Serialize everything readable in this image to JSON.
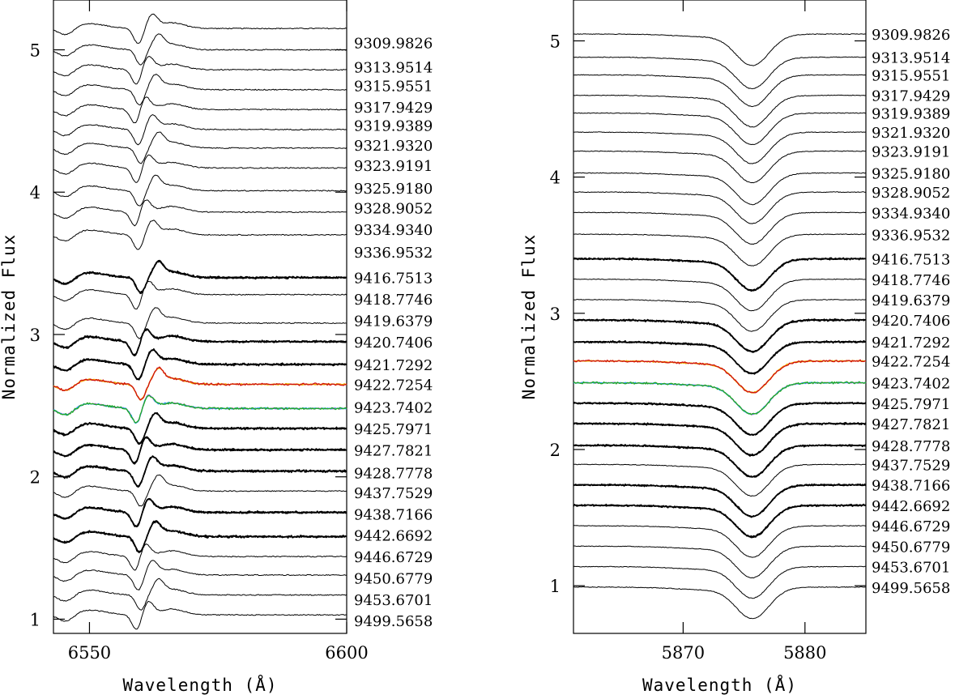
{
  "chart_data": [
    {
      "type": "line",
      "title": "",
      "xlabel": "Wavelength (Å)",
      "ylabel": "Normalized Flux",
      "xlim": [
        6543,
        6600
      ],
      "ylim": [
        0.9,
        5.35
      ],
      "x_ticks": [
        6550,
        6600
      ],
      "y_ticks": [
        1,
        2,
        3,
        4,
        5
      ],
      "line_type": "emission",
      "grid": false,
      "legend": "none"
    },
    {
      "type": "line",
      "title": "",
      "xlabel": "Wavelength (Å)",
      "ylabel": "Normalized Flux",
      "xlim": [
        5861,
        5885
      ],
      "ylim": [
        0.65,
        5.3
      ],
      "x_ticks": [
        5870,
        5880
      ],
      "y_ticks": [
        1,
        2,
        3,
        4,
        5
      ],
      "line_type": "absorption",
      "grid": false,
      "legend": "none"
    }
  ],
  "spectra": [
    {
      "label": "9309.9826",
      "right_offset": 5.05,
      "left_offset": 5.15
    },
    {
      "label": "9313.9514",
      "right_offset": 4.88,
      "left_offset": 5.0
    },
    {
      "label": "9315.9551",
      "right_offset": 4.75,
      "left_offset": 4.86
    },
    {
      "label": "9317.9429",
      "right_offset": 4.6,
      "left_offset": 4.72
    },
    {
      "label": "9319.9389",
      "right_offset": 4.47,
      "left_offset": 4.58
    },
    {
      "label": "9321.9320",
      "right_offset": 4.33,
      "left_offset": 4.44
    },
    {
      "label": "9323.9191",
      "right_offset": 4.19,
      "left_offset": 4.31
    },
    {
      "label": "9325.9180",
      "right_offset": 4.03,
      "left_offset": 4.17
    },
    {
      "label": "9328.9052",
      "right_offset": 3.89,
      "left_offset": 4.01
    },
    {
      "label": "9334.9340",
      "right_offset": 3.74,
      "left_offset": 3.86
    },
    {
      "label": "9336.9532",
      "right_offset": 3.58,
      "left_offset": 3.7
    },
    {
      "label": "9416.7513",
      "right_offset": 3.4,
      "left_offset": 3.4,
      "bold": true
    },
    {
      "label": "9418.7746",
      "right_offset": 3.25,
      "left_offset": 3.28
    },
    {
      "label": "9419.6379",
      "right_offset": 3.1,
      "left_offset": 3.08
    },
    {
      "label": "9420.7406",
      "right_offset": 2.95,
      "left_offset": 2.95,
      "bold": true
    },
    {
      "label": "9421.7292",
      "right_offset": 2.79,
      "left_offset": 2.79,
      "bold": true
    },
    {
      "label": "9422.7254",
      "right_offset": 2.65,
      "left_offset": 2.65,
      "colors": [
        "#ff9900",
        "#e8b000",
        "#d01010"
      ]
    },
    {
      "label": "9423.7402",
      "right_offset": 2.49,
      "left_offset": 2.48,
      "colors": [
        "#cc44dd",
        "#2299ee",
        "#22aa22"
      ]
    },
    {
      "label": "9425.7971",
      "right_offset": 2.34,
      "left_offset": 2.34,
      "bold": true
    },
    {
      "label": "9427.7821",
      "right_offset": 2.19,
      "left_offset": 2.19,
      "bold": true
    },
    {
      "label": "9428.7778",
      "right_offset": 2.03,
      "left_offset": 2.04,
      "bold": true
    },
    {
      "label": "9437.7529",
      "right_offset": 1.89,
      "left_offset": 1.9
    },
    {
      "label": "9438.7166",
      "right_offset": 1.74,
      "left_offset": 1.75,
      "bold": true
    },
    {
      "label": "9442.6692",
      "right_offset": 1.59,
      "left_offset": 1.58,
      "bold": true
    },
    {
      "label": "9446.6729",
      "right_offset": 1.44,
      "left_offset": 1.44
    },
    {
      "label": "9450.6779",
      "right_offset": 1.29,
      "left_offset": 1.31
    },
    {
      "label": "9453.6701",
      "right_offset": 1.14,
      "left_offset": 1.17
    },
    {
      "label": "9499.5658",
      "right_offset": 0.99,
      "left_offset": 1.03
    }
  ]
}
